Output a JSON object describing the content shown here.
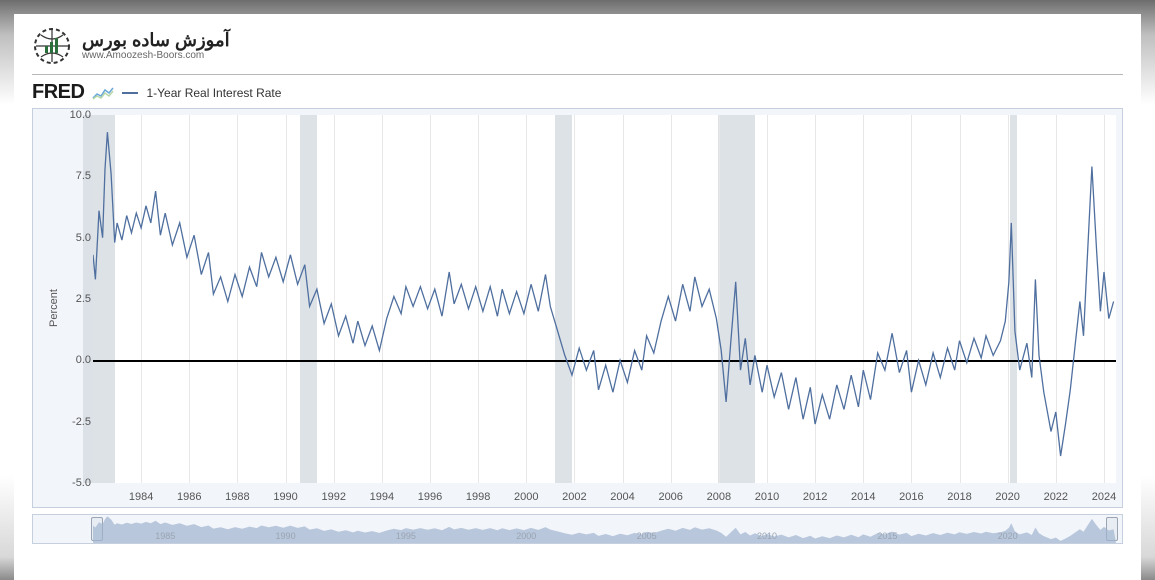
{
  "brand": {
    "main": "آموزش ساده بورس",
    "sub": "www.Amoozesh-Boors.com"
  },
  "legend": {
    "fred": "FRED",
    "series_label": "1-Year Real Interest Rate"
  },
  "chart": {
    "type": "line",
    "ylabel": "Percent",
    "line_color": "#4f6f9f",
    "line_width": 1.3,
    "background_color": "#ffffff",
    "plot_frame_color": "#c5cfdd",
    "recession_color": "#d7dde3",
    "grid_color": "#e7e7e7",
    "zero_color": "#000000",
    "x_start": 1982,
    "x_end": 2024.5,
    "ylim": [
      -5.0,
      10.0
    ],
    "yticks": [
      -5.0,
      -2.5,
      0.0,
      2.5,
      5.0,
      7.5,
      10.0
    ],
    "xticks": [
      1984,
      1986,
      1988,
      1990,
      1992,
      1994,
      1996,
      1998,
      2000,
      2002,
      2004,
      2006,
      2008,
      2010,
      2012,
      2014,
      2016,
      2018,
      2020,
      2022,
      2024
    ],
    "recessions": [
      {
        "start": 1981.6,
        "end": 1982.9
      },
      {
        "start": 1990.6,
        "end": 1991.3
      },
      {
        "start": 2001.2,
        "end": 2001.9
      },
      {
        "start": 2007.95,
        "end": 2009.5
      },
      {
        "start": 2020.1,
        "end": 2020.4
      }
    ],
    "overview_labels": [
      {
        "x": 1985,
        "t": "1985"
      },
      {
        "x": 1990,
        "t": "1990"
      },
      {
        "x": 1995,
        "t": "1995"
      },
      {
        "x": 2000,
        "t": "2000"
      },
      {
        "x": 2005,
        "t": "2005"
      },
      {
        "x": 2010,
        "t": "2010"
      },
      {
        "x": 2015,
        "t": "2015"
      },
      {
        "x": 2020,
        "t": "2020"
      }
    ],
    "series": [
      [
        1982.0,
        4.3
      ],
      [
        1982.1,
        3.3
      ],
      [
        1982.25,
        6.1
      ],
      [
        1982.4,
        5.0
      ],
      [
        1982.5,
        7.8
      ],
      [
        1982.6,
        9.3
      ],
      [
        1982.75,
        7.6
      ],
      [
        1982.9,
        4.8
      ],
      [
        1983.0,
        5.6
      ],
      [
        1983.2,
        4.9
      ],
      [
        1983.4,
        5.9
      ],
      [
        1983.6,
        5.2
      ],
      [
        1983.8,
        6.0
      ],
      [
        1984.0,
        5.4
      ],
      [
        1984.2,
        6.3
      ],
      [
        1984.4,
        5.6
      ],
      [
        1984.6,
        6.9
      ],
      [
        1984.8,
        5.1
      ],
      [
        1985.0,
        6.0
      ],
      [
        1985.3,
        4.7
      ],
      [
        1985.6,
        5.6
      ],
      [
        1985.9,
        4.2
      ],
      [
        1986.2,
        5.1
      ],
      [
        1986.5,
        3.5
      ],
      [
        1986.8,
        4.4
      ],
      [
        1987.0,
        2.7
      ],
      [
        1987.3,
        3.4
      ],
      [
        1987.6,
        2.4
      ],
      [
        1987.9,
        3.5
      ],
      [
        1988.2,
        2.6
      ],
      [
        1988.5,
        3.8
      ],
      [
        1988.8,
        3.0
      ],
      [
        1989.0,
        4.4
      ],
      [
        1989.3,
        3.4
      ],
      [
        1989.6,
        4.2
      ],
      [
        1989.9,
        3.2
      ],
      [
        1990.2,
        4.3
      ],
      [
        1990.5,
        3.1
      ],
      [
        1990.8,
        3.9
      ],
      [
        1991.0,
        2.2
      ],
      [
        1991.3,
        2.9
      ],
      [
        1991.6,
        1.5
      ],
      [
        1991.9,
        2.3
      ],
      [
        1992.2,
        1.0
      ],
      [
        1992.5,
        1.8
      ],
      [
        1992.8,
        0.7
      ],
      [
        1993.0,
        1.6
      ],
      [
        1993.3,
        0.6
      ],
      [
        1993.6,
        1.4
      ],
      [
        1993.9,
        0.4
      ],
      [
        1994.2,
        1.7
      ],
      [
        1994.5,
        2.6
      ],
      [
        1994.8,
        1.9
      ],
      [
        1995.0,
        3.0
      ],
      [
        1995.3,
        2.2
      ],
      [
        1995.6,
        3.0
      ],
      [
        1995.9,
        2.1
      ],
      [
        1996.2,
        2.9
      ],
      [
        1996.5,
        1.8
      ],
      [
        1996.8,
        3.6
      ],
      [
        1997.0,
        2.3
      ],
      [
        1997.3,
        3.1
      ],
      [
        1997.6,
        2.1
      ],
      [
        1997.9,
        3.0
      ],
      [
        1998.2,
        2.0
      ],
      [
        1998.5,
        3.0
      ],
      [
        1998.8,
        1.8
      ],
      [
        1999.0,
        2.9
      ],
      [
        1999.3,
        1.9
      ],
      [
        1999.6,
        2.8
      ],
      [
        1999.9,
        1.9
      ],
      [
        2000.2,
        3.1
      ],
      [
        2000.5,
        2.0
      ],
      [
        2000.8,
        3.5
      ],
      [
        2001.0,
        2.2
      ],
      [
        2001.3,
        1.2
      ],
      [
        2001.6,
        0.2
      ],
      [
        2001.9,
        -0.6
      ],
      [
        2002.2,
        0.5
      ],
      [
        2002.5,
        -0.4
      ],
      [
        2002.8,
        0.4
      ],
      [
        2003.0,
        -1.2
      ],
      [
        2003.3,
        -0.2
      ],
      [
        2003.6,
        -1.3
      ],
      [
        2003.9,
        0.0
      ],
      [
        2004.2,
        -0.9
      ],
      [
        2004.5,
        0.4
      ],
      [
        2004.8,
        -0.4
      ],
      [
        2005.0,
        1.0
      ],
      [
        2005.3,
        0.3
      ],
      [
        2005.6,
        1.6
      ],
      [
        2005.9,
        2.6
      ],
      [
        2006.2,
        1.6
      ],
      [
        2006.5,
        3.1
      ],
      [
        2006.8,
        2.0
      ],
      [
        2007.0,
        3.4
      ],
      [
        2007.3,
        2.2
      ],
      [
        2007.6,
        2.9
      ],
      [
        2007.9,
        1.7
      ],
      [
        2008.1,
        0.4
      ],
      [
        2008.3,
        -1.7
      ],
      [
        2008.5,
        0.8
      ],
      [
        2008.7,
        3.2
      ],
      [
        2008.9,
        -0.4
      ],
      [
        2009.1,
        0.9
      ],
      [
        2009.3,
        -1.0
      ],
      [
        2009.5,
        0.2
      ],
      [
        2009.8,
        -1.3
      ],
      [
        2010.0,
        -0.2
      ],
      [
        2010.3,
        -1.5
      ],
      [
        2010.6,
        -0.5
      ],
      [
        2010.9,
        -2.0
      ],
      [
        2011.2,
        -0.7
      ],
      [
        2011.5,
        -2.4
      ],
      [
        2011.8,
        -1.1
      ],
      [
        2012.0,
        -2.6
      ],
      [
        2012.3,
        -1.4
      ],
      [
        2012.6,
        -2.4
      ],
      [
        2012.9,
        -1.0
      ],
      [
        2013.2,
        -2.0
      ],
      [
        2013.5,
        -0.6
      ],
      [
        2013.8,
        -1.9
      ],
      [
        2014.0,
        -0.4
      ],
      [
        2014.3,
        -1.6
      ],
      [
        2014.6,
        0.3
      ],
      [
        2014.9,
        -0.4
      ],
      [
        2015.2,
        1.1
      ],
      [
        2015.5,
        -0.5
      ],
      [
        2015.8,
        0.4
      ],
      [
        2016.0,
        -1.3
      ],
      [
        2016.3,
        0.0
      ],
      [
        2016.6,
        -1.0
      ],
      [
        2016.9,
        0.3
      ],
      [
        2017.2,
        -0.7
      ],
      [
        2017.5,
        0.5
      ],
      [
        2017.8,
        -0.4
      ],
      [
        2018.0,
        0.8
      ],
      [
        2018.3,
        -0.1
      ],
      [
        2018.6,
        0.9
      ],
      [
        2018.9,
        0.1
      ],
      [
        2019.1,
        1.0
      ],
      [
        2019.4,
        0.2
      ],
      [
        2019.7,
        0.8
      ],
      [
        2019.9,
        1.6
      ],
      [
        2020.05,
        3.2
      ],
      [
        2020.15,
        5.6
      ],
      [
        2020.3,
        1.2
      ],
      [
        2020.5,
        -0.4
      ],
      [
        2020.8,
        0.7
      ],
      [
        2021.0,
        -0.7
      ],
      [
        2021.15,
        3.3
      ],
      [
        2021.3,
        0.2
      ],
      [
        2021.5,
        -1.3
      ],
      [
        2021.8,
        -2.9
      ],
      [
        2022.0,
        -2.1
      ],
      [
        2022.2,
        -3.9
      ],
      [
        2022.4,
        -2.6
      ],
      [
        2022.6,
        -1.2
      ],
      [
        2022.8,
        0.6
      ],
      [
        2023.0,
        2.4
      ],
      [
        2023.15,
        1.0
      ],
      [
        2023.3,
        4.0
      ],
      [
        2023.5,
        7.9
      ],
      [
        2023.7,
        4.4
      ],
      [
        2023.85,
        2.0
      ],
      [
        2024.0,
        3.6
      ],
      [
        2024.2,
        1.7
      ],
      [
        2024.4,
        2.4
      ]
    ]
  }
}
